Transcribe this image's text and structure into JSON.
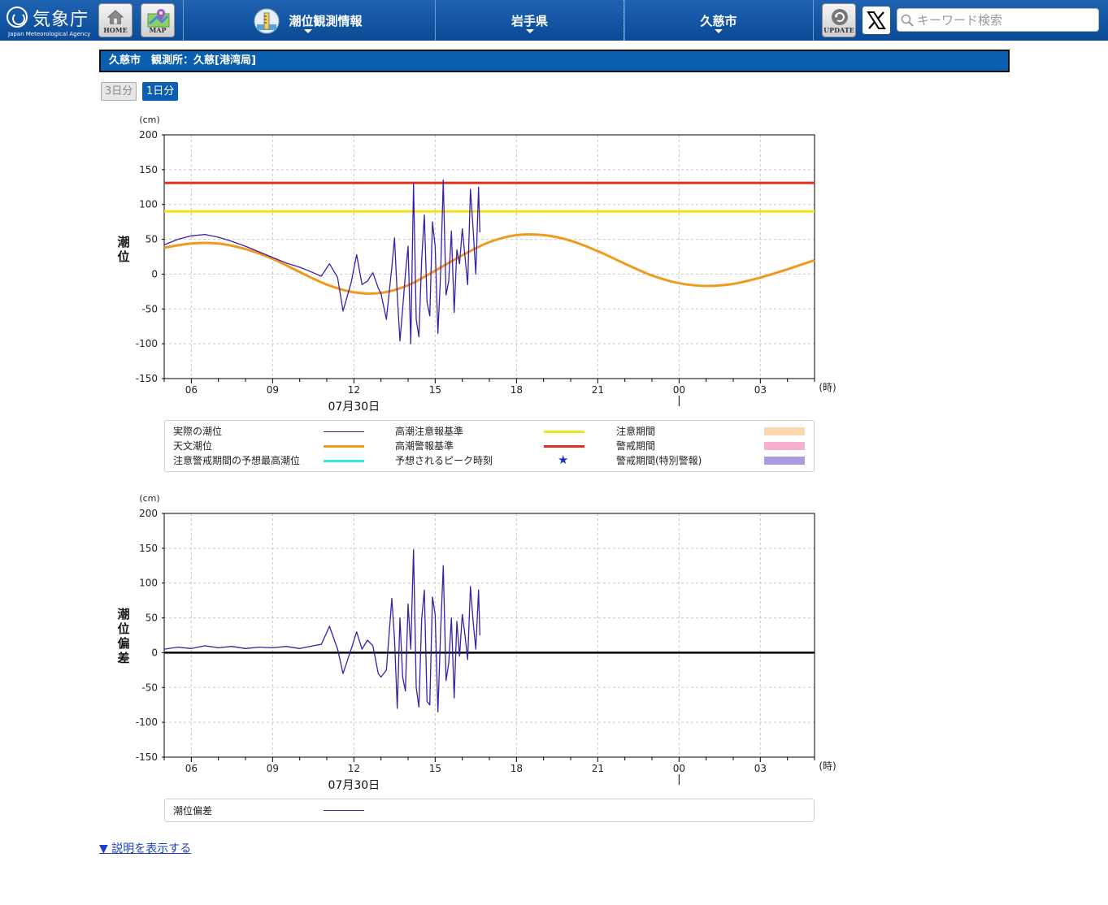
{
  "header": {
    "logo_text": "気象庁",
    "logo_en": "Japan Meteorological Agency",
    "home_label": "HOME",
    "map_label": "MAP",
    "nav": [
      {
        "label": "潮位観測情報"
      },
      {
        "label": "岩手県"
      },
      {
        "label": "久慈市"
      }
    ],
    "update_label": "UPDATE",
    "search_placeholder": "キーワード検索"
  },
  "page": {
    "title": "久慈市　観測所：久慈[港湾局]",
    "tabs": [
      {
        "label": "3日分",
        "active": false
      },
      {
        "label": "1日分",
        "active": true
      }
    ],
    "explain_link": "▼ 説明を表示する"
  },
  "colors": {
    "header_blue": "#0a4a97",
    "observed": "#3b1fa8",
    "astronomical": "#f0991f",
    "advisory": "#f2e21a",
    "warning": "#e0301e",
    "peak_max": "#30e8ea",
    "peak_star": "#1a2fd0",
    "advisory_period": "#fad7b0",
    "warning_period": "#f7b0cf",
    "special_period": "#ad9be0",
    "anomaly_zero": "#000000"
  },
  "chart_data": [
    {
      "type": "line",
      "ylabel": "潮位",
      "unit": "(cm)",
      "xunit": "(時)",
      "date_label": "07月30日",
      "ylim": [
        -150,
        200
      ],
      "yticks": [
        200,
        150,
        100,
        50,
        0,
        -50,
        -100,
        -150
      ],
      "xlim_hours": [
        5,
        29
      ],
      "xticks": [
        {
          "hour": 6,
          "label": "06"
        },
        {
          "hour": 9,
          "label": "09"
        },
        {
          "hour": 12,
          "label": "12"
        },
        {
          "hour": 15,
          "label": "15"
        },
        {
          "hour": 18,
          "label": "18"
        },
        {
          "hour": 21,
          "label": "21"
        },
        {
          "hour": 24,
          "label": "00"
        },
        {
          "hour": 27,
          "label": "03"
        }
      ],
      "grid": true,
      "hlines": [
        {
          "name": "高潮警報基準",
          "value": 131
        },
        {
          "name": "高潮注意報基準",
          "value": 90
        }
      ],
      "series": [
        {
          "name": "天文潮位",
          "x": [
            5.0,
            6.0,
            7.0,
            8.0,
            9.0,
            10.0,
            11.0,
            12.0,
            13.0,
            14.0,
            15.0,
            16.0,
            17.0,
            18.0,
            19.0,
            20.0,
            21.0,
            22.0,
            23.0,
            24.0,
            25.0,
            26.0,
            27.0,
            28.0,
            29.0
          ],
          "y": [
            38,
            44,
            44,
            36,
            22,
            3,
            -15,
            -26,
            -27,
            -16,
            5,
            27,
            46,
            56,
            56,
            48,
            33,
            15,
            -2,
            -13,
            -17,
            -14,
            -5,
            7,
            20
          ]
        },
        {
          "name": "実際の潮位",
          "x": [
            5.0,
            5.5,
            6.0,
            6.5,
            7.0,
            7.5,
            8.0,
            8.5,
            9.0,
            9.5,
            10.0,
            10.5,
            10.8,
            11.1,
            11.4,
            11.6,
            11.9,
            12.1,
            12.3,
            12.5,
            12.7,
            12.9,
            13.0,
            13.2,
            13.4,
            13.5,
            13.6,
            13.7,
            13.8,
            13.9,
            14.0,
            14.1,
            14.2,
            14.3,
            14.4,
            14.5,
            14.6,
            14.7,
            14.8,
            14.9,
            15.0,
            15.1,
            15.2,
            15.3,
            15.4,
            15.5,
            15.6,
            15.7,
            15.8,
            15.9,
            16.0,
            16.1,
            16.2,
            16.3,
            16.4,
            16.5,
            16.6,
            16.65
          ],
          "y": [
            42,
            50,
            55,
            57,
            53,
            47,
            40,
            32,
            24,
            16,
            10,
            2,
            -3,
            15,
            -5,
            -53,
            -12,
            28,
            -15,
            -10,
            2,
            -20,
            -28,
            -65,
            10,
            52,
            -30,
            -96,
            -50,
            0,
            40,
            -100,
            130,
            -65,
            -90,
            20,
            85,
            -40,
            -60,
            75,
            40,
            -85,
            0,
            135,
            -30,
            -10,
            62,
            -55,
            35,
            15,
            65,
            25,
            -15,
            122,
            65,
            0,
            125,
            60
          ]
        }
      ],
      "legend": [
        {
          "label": "実際の潮位",
          "symbol": "line-observed"
        },
        {
          "label": "高潮注意報基準",
          "symbol": "line-advisory"
        },
        {
          "label": "注意期間",
          "symbol": "box-advisory-period"
        },
        {
          "label": "天文潮位",
          "symbol": "line-astronomical"
        },
        {
          "label": "高潮警報基準",
          "symbol": "line-warning"
        },
        {
          "label": "警戒期間",
          "symbol": "box-warning-period"
        },
        {
          "label": "注意警戒期間の予想最高潮位",
          "symbol": "line-peak"
        },
        {
          "label": "予想されるピーク時刻",
          "symbol": "star",
          "glyph": "★"
        },
        {
          "label": "警戒期間(特別警報)",
          "symbol": "box-special-period"
        }
      ]
    },
    {
      "type": "line",
      "ylabel": "潮位偏差",
      "unit": "(cm)",
      "xunit": "(時)",
      "date_label": "07月30日",
      "ylim": [
        -150,
        200
      ],
      "yticks": [
        200,
        150,
        100,
        50,
        0,
        -50,
        -100,
        -150
      ],
      "xlim_hours": [
        5,
        29
      ],
      "xticks": [
        {
          "hour": 6,
          "label": "06"
        },
        {
          "hour": 9,
          "label": "09"
        },
        {
          "hour": 12,
          "label": "12"
        },
        {
          "hour": 15,
          "label": "15"
        },
        {
          "hour": 18,
          "label": "18"
        },
        {
          "hour": 21,
          "label": "21"
        },
        {
          "hour": 24,
          "label": "00"
        },
        {
          "hour": 27,
          "label": "03"
        }
      ],
      "grid": true,
      "hlines": [
        {
          "name": "zero",
          "value": 0
        }
      ],
      "series": [
        {
          "name": "潮位偏差",
          "x": [
            5.0,
            5.5,
            6.0,
            6.5,
            7.0,
            7.5,
            8.0,
            8.5,
            9.0,
            9.5,
            10.0,
            10.5,
            10.8,
            11.1,
            11.4,
            11.6,
            11.9,
            12.1,
            12.3,
            12.5,
            12.7,
            12.9,
            13.0,
            13.2,
            13.4,
            13.5,
            13.6,
            13.7,
            13.8,
            13.9,
            14.0,
            14.1,
            14.2,
            14.3,
            14.4,
            14.5,
            14.6,
            14.7,
            14.8,
            14.9,
            15.0,
            15.1,
            15.2,
            15.3,
            15.4,
            15.5,
            15.6,
            15.7,
            15.8,
            15.9,
            16.0,
            16.1,
            16.2,
            16.3,
            16.4,
            16.5,
            16.6,
            16.65
          ],
          "y": [
            5,
            8,
            6,
            10,
            7,
            9,
            6,
            8,
            7,
            9,
            6,
            10,
            12,
            38,
            5,
            -30,
            5,
            30,
            5,
            18,
            10,
            -30,
            -35,
            -25,
            78,
            20,
            -80,
            50,
            -35,
            -55,
            70,
            5,
            148,
            -50,
            -78,
            48,
            90,
            -70,
            -75,
            80,
            55,
            -85,
            30,
            125,
            -40,
            -15,
            50,
            -65,
            45,
            -5,
            55,
            25,
            -10,
            95,
            45,
            5,
            90,
            25
          ]
        }
      ],
      "legend": [
        {
          "label": "潮位偏差",
          "symbol": "line-observed"
        }
      ]
    }
  ]
}
